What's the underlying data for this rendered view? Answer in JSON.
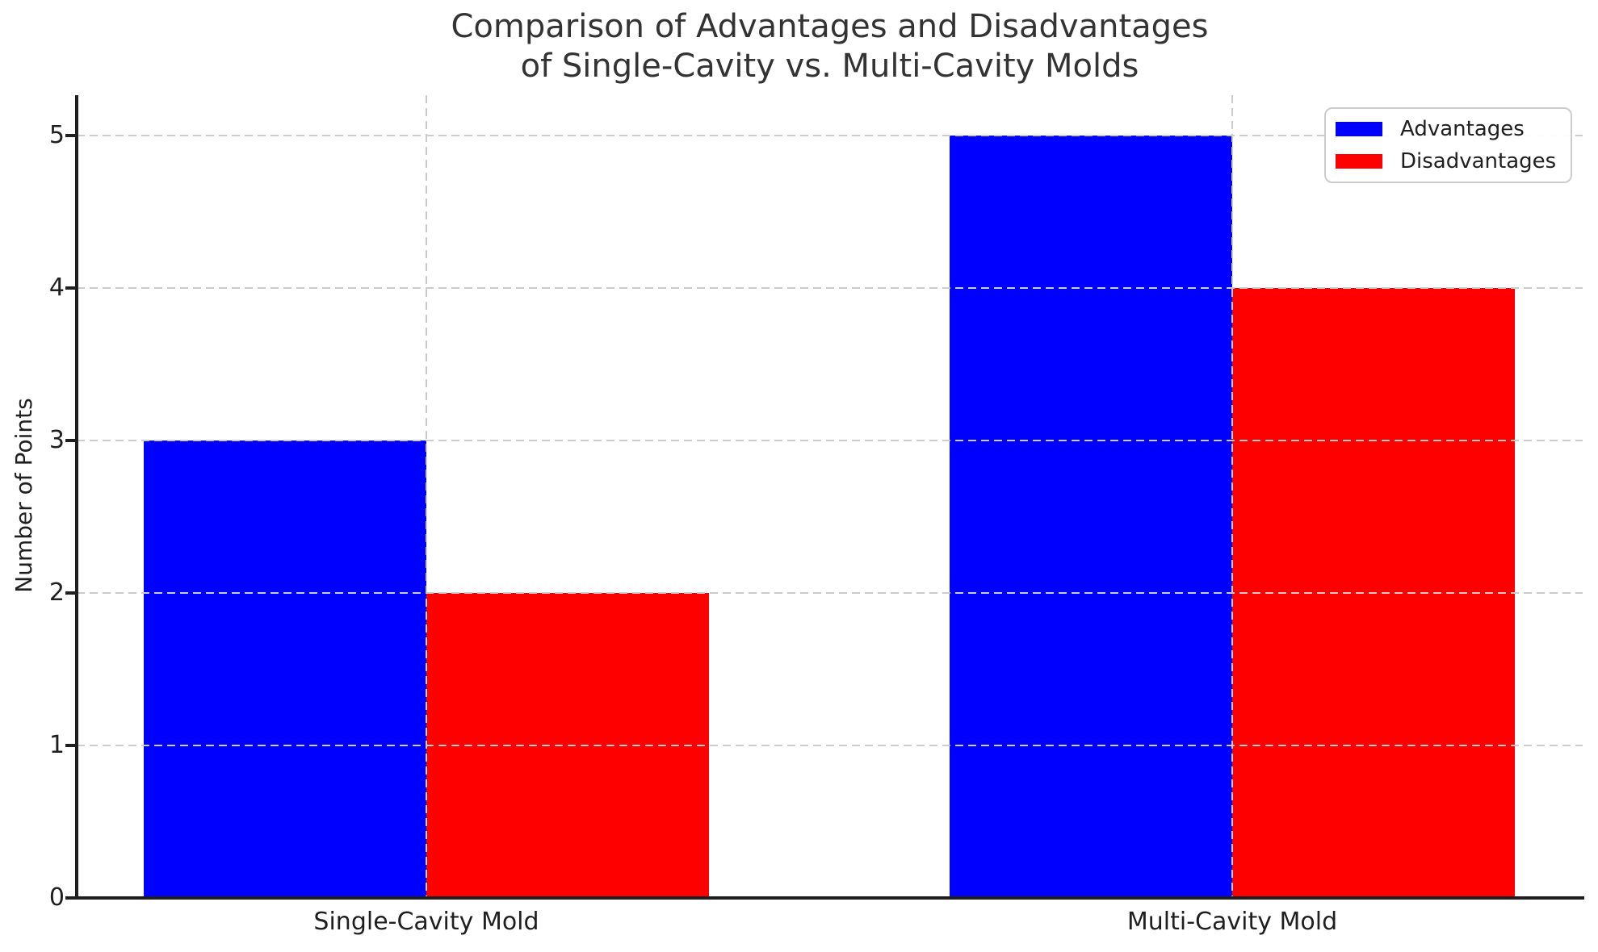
{
  "chart_data": {
    "type": "bar",
    "title": "Comparison of Advantages and Disadvantages\nof Single-Cavity vs. Multi-Cavity Molds",
    "title_lines": [
      "Comparison of Advantages and Disadvantages",
      "of Single-Cavity vs. Multi-Cavity Molds"
    ],
    "categories": [
      "Single-Cavity Mold",
      "Multi-Cavity Mold"
    ],
    "series": [
      {
        "name": "Advantages",
        "color": "#0000ff",
        "values": [
          3,
          5
        ]
      },
      {
        "name": "Disadvantages",
        "color": "#ff0000",
        "values": [
          2,
          4
        ]
      }
    ],
    "xlabel": "",
    "ylabel": "Number of Points",
    "yticks": [
      0,
      1,
      2,
      3,
      4,
      5
    ],
    "ylim": [
      0,
      5.27
    ],
    "grid": true,
    "grid_line_style": "dashed",
    "legend_position": "upper right",
    "bar_width_fraction": 0.35
  },
  "colors": {
    "background": "#ffffff",
    "grid": "#cccccc",
    "spine": "#1f1f1f",
    "title_text": "#333333",
    "tick_text": "#1f1f1f",
    "legend_border": "#cccccc"
  }
}
